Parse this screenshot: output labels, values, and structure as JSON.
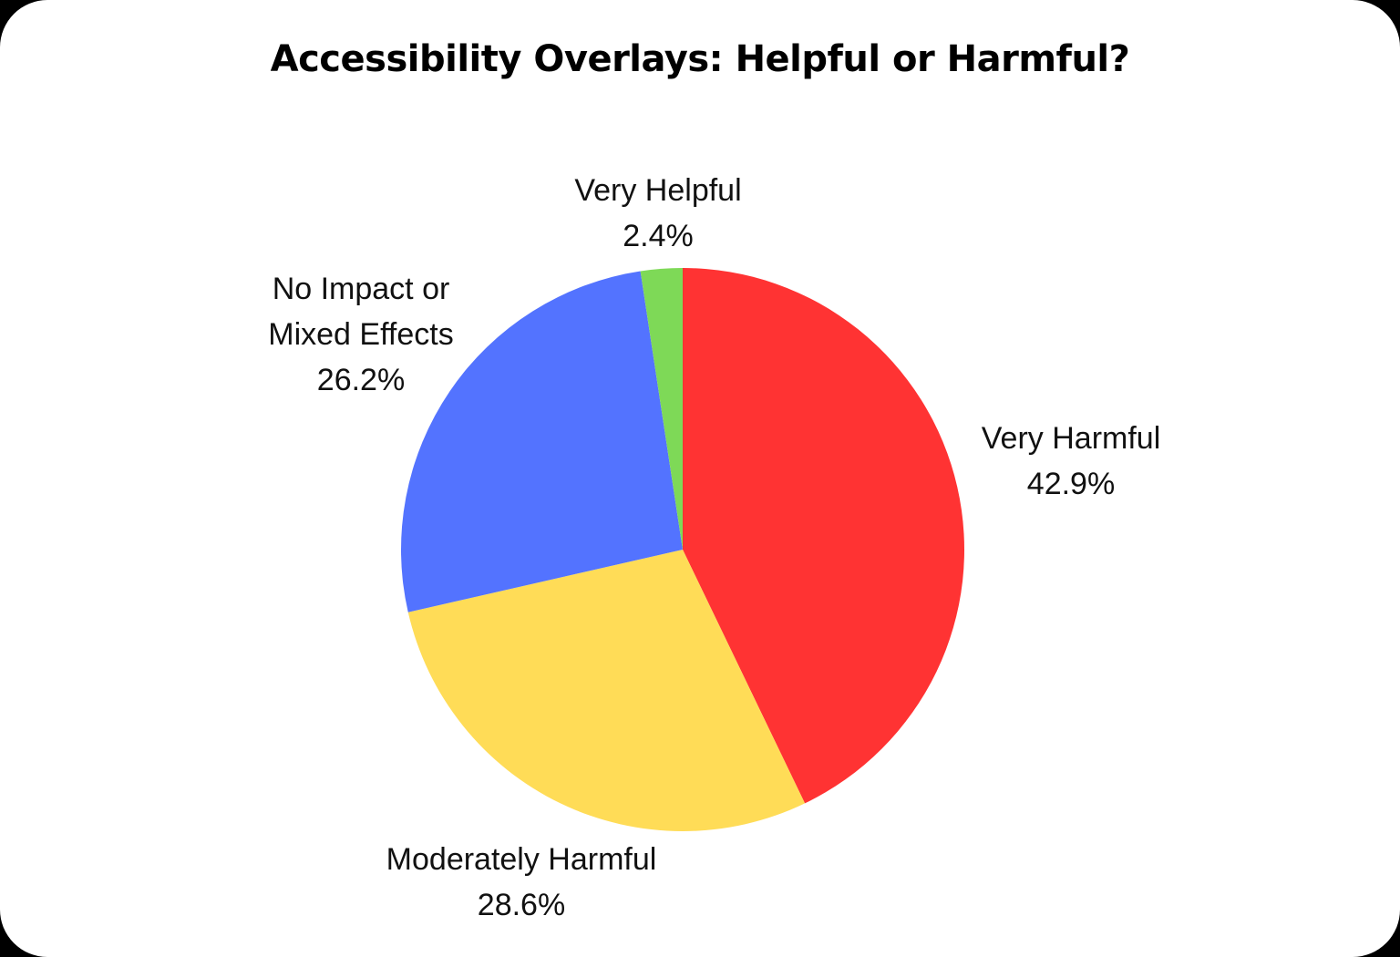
{
  "chart_data": {
    "type": "pie",
    "title": "Accessibility Overlays: Helpful or Harmful?",
    "categories": [
      "Very Harmful",
      "Moderately Harmful",
      "No Impact or Mixed Effects",
      "Very Helpful"
    ],
    "values": [
      42.9,
      28.6,
      26.2,
      2.4
    ],
    "unit": "%",
    "colors": [
      "#ff3333",
      "#ffdc57",
      "#5373ff",
      "#7ed957"
    ],
    "start_angle": "12 o'clock",
    "direction": "clockwise",
    "labels_outside": true,
    "legend": "none"
  },
  "slices": [
    {
      "name": "Very Harmful",
      "label_line1": "Very Harmful",
      "label_line2": "",
      "pct_text": "42.9%",
      "value": 42.9,
      "color": "#ff3333"
    },
    {
      "name": "Moderately Harmful",
      "label_line1": "Moderately Harmful",
      "label_line2": "",
      "pct_text": "28.6%",
      "value": 28.6,
      "color": "#ffdc57"
    },
    {
      "name": "No Impact or Mixed Effects",
      "label_line1": "No Impact or",
      "label_line2": "Mixed Effects",
      "pct_text": "26.2%",
      "value": 26.2,
      "color": "#5373ff"
    },
    {
      "name": "Very Helpful",
      "label_line1": "Very Helpful",
      "label_line2": "",
      "pct_text": "2.4%",
      "value": 2.4,
      "color": "#7ed957"
    }
  ]
}
